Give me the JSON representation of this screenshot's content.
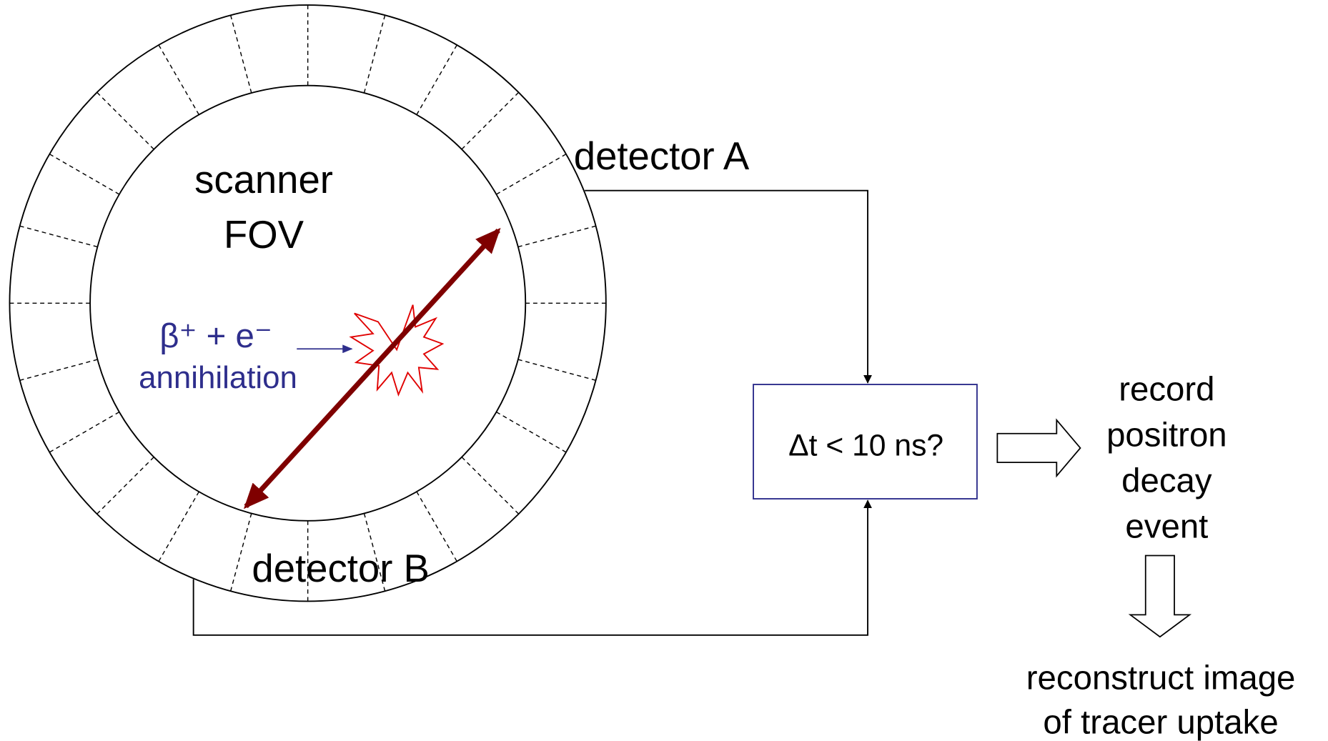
{
  "ring": {
    "label": [
      "scanner",
      "FOV"
    ]
  },
  "detectors": {
    "a": "detector A",
    "b": "detector B"
  },
  "annihilation": {
    "equation": "β⁺ +  e⁻",
    "label": "annihilation"
  },
  "coincidence": {
    "condition": "Δt < 10 ns?"
  },
  "outputs": {
    "record": [
      "record",
      "positron",
      "decay",
      "event"
    ],
    "reconstruct": [
      "reconstruct image",
      "of tracer uptake"
    ]
  }
}
